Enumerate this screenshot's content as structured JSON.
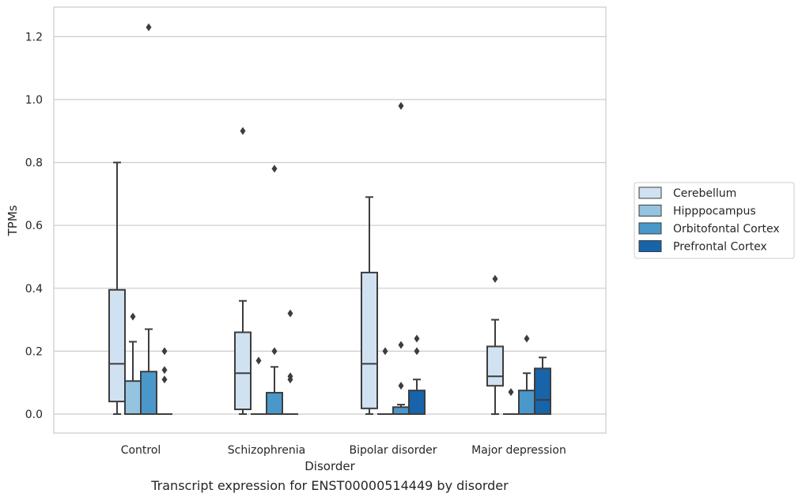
{
  "caption": "Transcript expression for ENST00000514449 by disorder",
  "chart_data": {
    "type": "box",
    "xlabel": "Disorder",
    "ylabel": "TPMs",
    "ylim": [
      -0.06,
      1.29
    ],
    "yticks": [
      "0.0",
      "0.2",
      "0.4",
      "0.6",
      "0.8",
      "1.0",
      "1.2"
    ],
    "grid": true,
    "legend_placement": "right",
    "categories": [
      "Control",
      "Schizophrenia",
      "Bipolar disorder",
      "Major depression"
    ],
    "series": [
      {
        "name": "Cerebellum",
        "color": "#d0e1f2",
        "boxes": [
          {
            "min": 0.0,
            "q1": 0.04,
            "median": 0.16,
            "q3": 0.395,
            "max": 0.8,
            "outliers": []
          },
          {
            "min": 0.0,
            "q1": 0.015,
            "median": 0.13,
            "q3": 0.26,
            "max": 0.36,
            "outliers": [
              0.9
            ]
          },
          {
            "min": 0.0,
            "q1": 0.018,
            "median": 0.16,
            "q3": 0.45,
            "max": 0.69,
            "outliers": []
          },
          {
            "min": 0.0,
            "q1": 0.09,
            "median": 0.12,
            "q3": 0.215,
            "max": 0.3,
            "outliers": [
              0.43
            ]
          }
        ]
      },
      {
        "name": "Hipppocampus",
        "color": "#94c4df",
        "boxes": [
          {
            "min": 0.0,
            "q1": 0.0,
            "median": 0.0,
            "q3": 0.105,
            "max": 0.23,
            "outliers": [
              0.31
            ]
          },
          {
            "min": 0.0,
            "q1": 0.0,
            "median": 0.0,
            "q3": 0.0,
            "max": 0.0,
            "outliers": [
              0.17
            ]
          },
          {
            "min": 0.0,
            "q1": 0.0,
            "median": 0.0,
            "q3": 0.0,
            "max": 0.0,
            "outliers": [
              0.2
            ]
          },
          {
            "min": 0.0,
            "q1": 0.0,
            "median": 0.0,
            "q3": 0.0,
            "max": 0.0,
            "outliers": [
              0.07
            ]
          }
        ]
      },
      {
        "name": "Orbitofontal Cortex",
        "color": "#4a98c9",
        "boxes": [
          {
            "min": 0.0,
            "q1": 0.0,
            "median": 0.0,
            "q3": 0.135,
            "max": 0.27,
            "outliers": [
              1.23
            ]
          },
          {
            "min": 0.0,
            "q1": 0.0,
            "median": 0.0,
            "q3": 0.068,
            "max": 0.15,
            "outliers": [
              0.2,
              0.78
            ]
          },
          {
            "min": 0.0,
            "q1": 0.0,
            "median": 0.0,
            "q3": 0.022,
            "max": 0.03,
            "outliers": [
              0.09,
              0.22,
              0.98
            ]
          },
          {
            "min": 0.0,
            "q1": 0.0,
            "median": 0.0,
            "q3": 0.075,
            "max": 0.13,
            "outliers": [
              0.24
            ]
          }
        ]
      },
      {
        "name": "Prefrontal Cortex",
        "color": "#1764ab",
        "boxes": [
          {
            "min": 0.0,
            "q1": 0.0,
            "median": 0.0,
            "q3": 0.0,
            "max": 0.0,
            "outliers": [
              0.11,
              0.14,
              0.2
            ]
          },
          {
            "min": 0.0,
            "q1": 0.0,
            "median": 0.0,
            "q3": 0.0,
            "max": 0.0,
            "outliers": [
              0.11,
              0.12,
              0.32
            ]
          },
          {
            "min": 0.0,
            "q1": 0.0,
            "median": 0.0,
            "q3": 0.075,
            "max": 0.11,
            "outliers": [
              0.2,
              0.24
            ]
          },
          {
            "min": 0.0,
            "q1": 0.0,
            "median": 0.045,
            "q3": 0.145,
            "max": 0.18,
            "outliers": []
          }
        ]
      }
    ]
  }
}
